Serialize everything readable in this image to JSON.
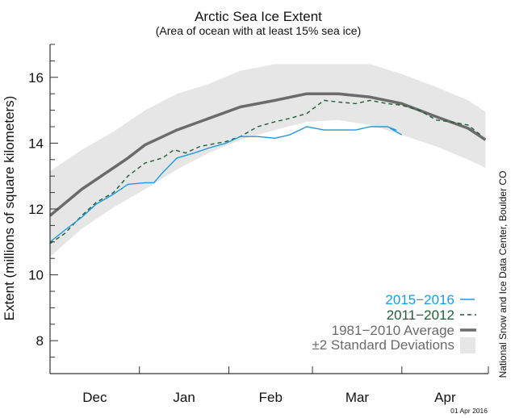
{
  "chart_data": {
    "type": "line",
    "title": "Arctic Sea Ice Extent",
    "subtitle": "(Area of ocean with at least 15% sea ice)",
    "xlabel": "",
    "ylabel": "Extent (millions of square kilometers)",
    "ylim": [
      7,
      17
    ],
    "yticks": [
      8,
      10,
      12,
      14,
      16
    ],
    "y_minor_step": 0.5,
    "x_unit": "days since Dec 1",
    "xlim": [
      0,
      152
    ],
    "x_month_boundaries": [
      0,
      31,
      62,
      91,
      122,
      152
    ],
    "xtick_labels": [
      "Dec",
      "Jan",
      "Feb",
      "Mar",
      "Apr"
    ],
    "credit": "National Snow and Ice Data Center, Boulder CO",
    "date_stamp": "01 Apr 2016",
    "legend_position": "bottom-right",
    "colors": {
      "current": "#1a9be0",
      "comparison": "#1e5e36",
      "average": "#6b6b6b",
      "band": "#e6e6e6"
    },
    "series": [
      {
        "name": "2015−2016",
        "style": "solid",
        "x": [
          0,
          5,
          11,
          16,
          22,
          27,
          33,
          36,
          39,
          44,
          50,
          55,
          61,
          66,
          72,
          78,
          83,
          89,
          95,
          100,
          106,
          111,
          117,
          120,
          118,
          122
        ],
        "y": [
          11.0,
          11.35,
          11.75,
          12.15,
          12.45,
          12.75,
          12.8,
          12.8,
          13.1,
          13.55,
          13.7,
          13.85,
          14.0,
          14.2,
          14.2,
          14.15,
          14.25,
          14.5,
          14.4,
          14.4,
          14.4,
          14.5,
          14.5,
          14.4,
          14.45,
          14.25
        ]
      },
      {
        "name": "2011−2012",
        "style": "dashed",
        "x": [
          0,
          5,
          11,
          16,
          22,
          27,
          33,
          39,
          43,
          47,
          52,
          61,
          66,
          72,
          78,
          83,
          89,
          95,
          100,
          106,
          111,
          117,
          122,
          128,
          134,
          139,
          145,
          150
        ],
        "y": [
          10.95,
          11.25,
          11.8,
          12.2,
          12.5,
          13.0,
          13.4,
          13.55,
          13.8,
          13.7,
          13.9,
          14.05,
          14.2,
          14.5,
          14.65,
          14.75,
          14.9,
          15.3,
          15.25,
          15.2,
          15.3,
          15.2,
          15.15,
          15.0,
          14.7,
          14.65,
          14.55,
          14.2
        ]
      },
      {
        "name": "1981−2010 Average",
        "style": "thick",
        "x": [
          0,
          11,
          22,
          27,
          33,
          44,
          55,
          66,
          78,
          89,
          100,
          111,
          122,
          134,
          145,
          151
        ],
        "y": [
          11.8,
          12.6,
          13.25,
          13.55,
          13.95,
          14.4,
          14.75,
          15.1,
          15.3,
          15.5,
          15.5,
          15.4,
          15.2,
          14.8,
          14.45,
          14.1
        ]
      }
    ],
    "band": {
      "name": "±2 Standard Deviations",
      "x": [
        0,
        11,
        22,
        33,
        44,
        55,
        66,
        78,
        89,
        100,
        111,
        122,
        134,
        145,
        151
      ],
      "upper": [
        13.15,
        13.8,
        14.35,
        15.0,
        15.5,
        15.8,
        16.2,
        16.4,
        16.4,
        16.4,
        16.4,
        16.1,
        15.7,
        15.3,
        14.95
      ],
      "lower": [
        10.55,
        11.4,
        12.05,
        12.6,
        13.2,
        13.7,
        14.1,
        14.4,
        14.65,
        14.7,
        14.55,
        14.25,
        13.9,
        13.5,
        13.25
      ]
    },
    "legend": [
      {
        "label": "2015−2016",
        "marker": "line"
      },
      {
        "label": "2011−2012",
        "marker": "dashed"
      },
      {
        "label": "1981−2010 Average",
        "marker": "thick"
      },
      {
        "label": "±2 Standard Deviations",
        "marker": "box"
      }
    ]
  }
}
